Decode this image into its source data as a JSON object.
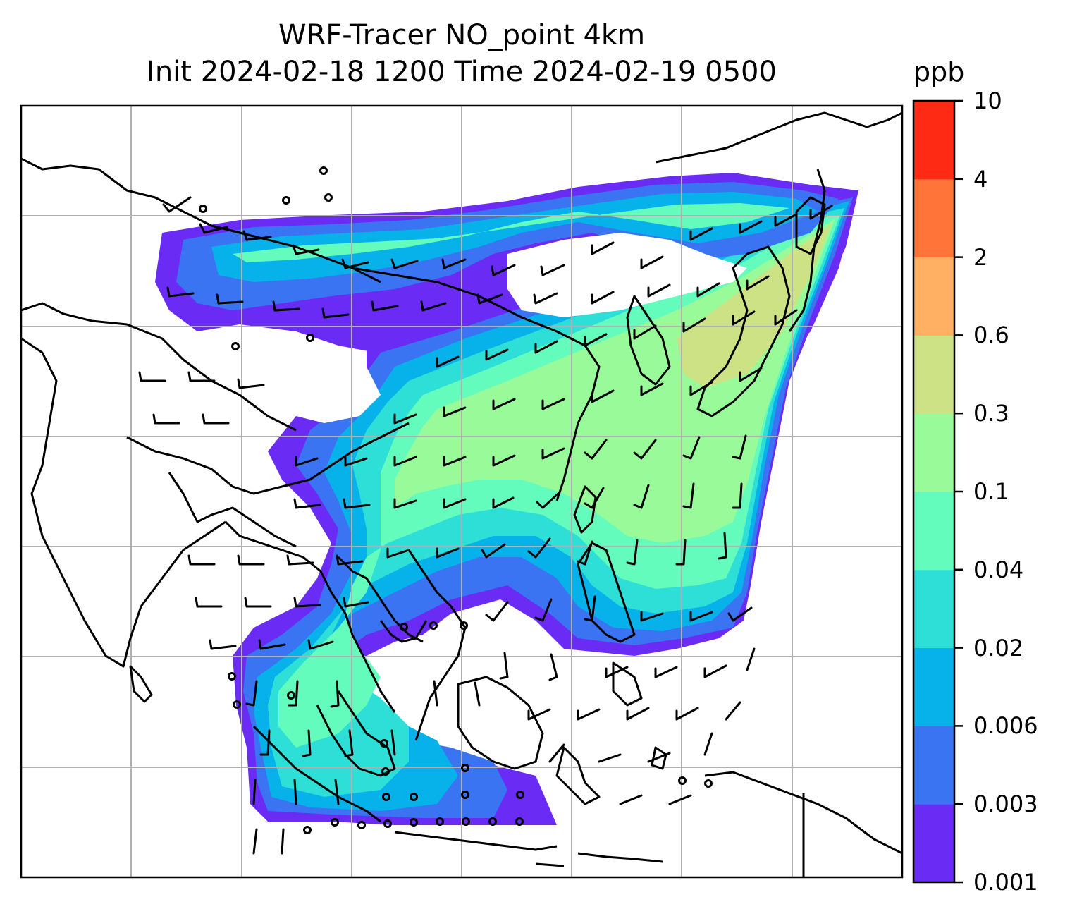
{
  "title": {
    "line1": "WRF-Tracer NO_point 4km",
    "line2": "Init 2024-02-18 1200 Time 2024-02-19 0500"
  },
  "colorbar": {
    "unit": "ppb",
    "ticks": [
      "10",
      "4",
      "2",
      "0.6",
      "0.3",
      "0.1",
      "0.04",
      "0.02",
      "0.006",
      "0.003",
      "0.001"
    ],
    "colors": [
      "#6a2bf5",
      "#3a74f3",
      "#07b2ea",
      "#2ddfd6",
      "#63fcbd",
      "#98fa98",
      "#cde185",
      "#ffb062",
      "#ff7438",
      "#ff2a14"
    ]
  },
  "map": {
    "gridline_color": "#b0b0b0",
    "coastline_color": "#000000",
    "barb_color": "#000000",
    "plume_colors": {
      "edge": "#6a2bf5",
      "low": "#3a74f3",
      "mid": "#07b2ea",
      "midhigh": "#2ddfd6",
      "high": "#63fcbd",
      "higher": "#98fa98",
      "peak": "#cde185"
    }
  }
}
